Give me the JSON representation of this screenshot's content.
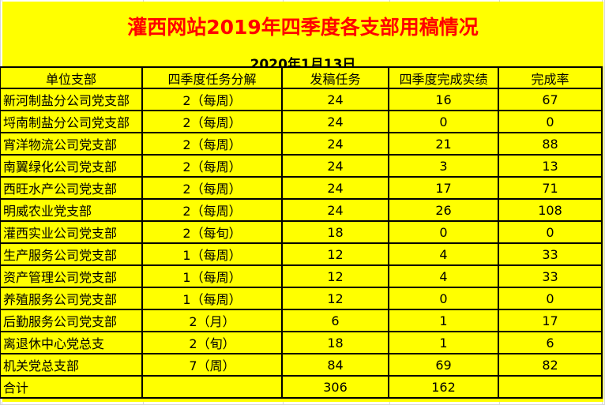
{
  "page": {
    "title": "灌西网站2019年四季度各支部用稿情况",
    "date": "2020年1月13日"
  },
  "table": {
    "columns": [
      "单位支部",
      "四季度任务分解",
      "发稿任务",
      "四季度完成实绩",
      "完成率"
    ],
    "rows": [
      [
        "新河制盐分公司党支部",
        "2（每周）",
        "24",
        "16",
        "67"
      ],
      [
        "埒南制盐分公司党支部",
        "2（每周）",
        "24",
        "0",
        "0"
      ],
      [
        "宵洋物流公司党支部",
        "2（每周）",
        "24",
        "21",
        "88"
      ],
      [
        "南翼绿化公司党支部",
        "2（每周）",
        "24",
        "3",
        "13"
      ],
      [
        "西旺水产公司党支部",
        "2（每周）",
        "24",
        "17",
        "71"
      ],
      [
        "明威农业党支部",
        "2（每周）",
        "24",
        "26",
        "108"
      ],
      [
        "灌西实业公司党支部",
        "2（每旬）",
        "18",
        "0",
        "0"
      ],
      [
        "生产服务公司党支部",
        "1（每周）",
        "12",
        "4",
        "33"
      ],
      [
        "资产管理公司党支部",
        "1（每周）",
        "12",
        "4",
        "33"
      ],
      [
        "养殖服务公司党支部",
        "1（每周）",
        "12",
        "0",
        "0"
      ],
      [
        "后勤服务公司党支部",
        "2（月）",
        "6",
        "1",
        "17"
      ],
      [
        "离退休中心党总支",
        "2（旬）",
        "18",
        "1",
        "6"
      ],
      [
        "机关党总支部",
        "7（周）",
        "84",
        "69",
        "82"
      ]
    ],
    "total_row": [
      "合计",
      "",
      "306",
      "162",
      ""
    ]
  },
  "colors": {
    "background": "#FFFF00",
    "margin": "#FFFFFF",
    "title_text": "#FF0000",
    "body_text": "#000000",
    "table_border": "#000000",
    "gridline": "#D6D6D6"
  }
}
